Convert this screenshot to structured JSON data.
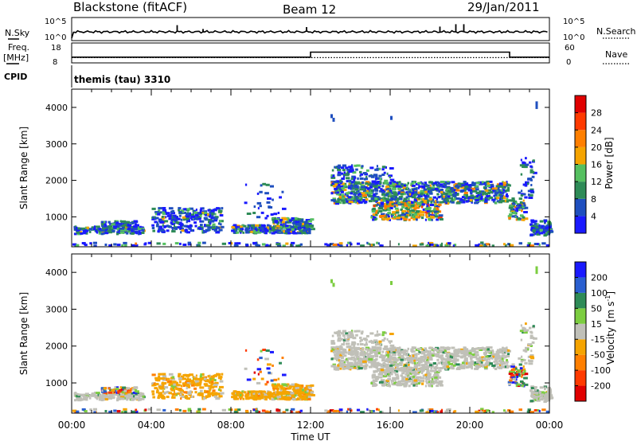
{
  "header": {
    "station": "Blackstone (fitACF)",
    "beam": "Beam 12",
    "date": "29/Jan/2011"
  },
  "colors": {
    "scatter_power": [
      "#1a1aff",
      "#1f4fbf",
      "#2e8b57",
      "#55c060",
      "#f5a400",
      "#ff7f00",
      "#ff3a00",
      "#e00000"
    ],
    "scatter_velocity": [
      "#1a1aff",
      "#2a5fd0",
      "#2e8b57",
      "#7ccd40",
      "#c0c0b8",
      "#f5a400",
      "#ff7f00",
      "#ff3a00",
      "#e00000"
    ]
  },
  "chart_data": [
    {
      "type": "line",
      "name_label": "N.Sky",
      "right_label": "N.Search",
      "left_ticks": [
        "10^5",
        "10^0"
      ],
      "right_ticks": [
        "10^5",
        "10^0"
      ],
      "x": [
        0,
        2.5,
        4.5,
        5.3,
        6.6,
        9.0,
        11.8,
        12.9,
        18.5,
        19.3,
        19.7,
        24
      ],
      "n_sky_spikes": [
        [
          5.3,
          0.7
        ],
        [
          6.6,
          0.3
        ],
        [
          11.8,
          0.5
        ],
        [
          18.5,
          0.55
        ],
        [
          19.3,
          0.8
        ],
        [
          19.7,
          0.8
        ]
      ]
    },
    {
      "type": "line",
      "name_label": "Freq.",
      "unit_label": "[MHz]",
      "right_label": "Nave",
      "left_ticks": [
        "18",
        "8"
      ],
      "right_ticks": [
        "60",
        "0"
      ],
      "freq_x": [
        0,
        12.0,
        12.0,
        22.0,
        22.0,
        24
      ],
      "freq_y": [
        10.5,
        10.5,
        14.2,
        14.2,
        10.5,
        10.5
      ],
      "nave": 18
    },
    {
      "type": "text",
      "label": "CPID",
      "value": "themis (tau) 3310"
    },
    {
      "type": "scatter",
      "ylabel": "Slant Range [km]",
      "yticks": [
        1000,
        2000,
        3000,
        4000
      ],
      "ylim": [
        180,
        4500
      ],
      "xlim": [
        0,
        24
      ],
      "colorbar": {
        "label": "Power [dB]",
        "ticks": [
          "4",
          "8",
          "12",
          "16",
          "20",
          "24",
          "28"
        ]
      }
    },
    {
      "type": "scatter",
      "ylabel": "Slant Range [km]",
      "yticks": [
        1000,
        2000,
        3000,
        4000
      ],
      "ylim": [
        180,
        4500
      ],
      "xlim": [
        0,
        24
      ],
      "xticks": [
        "00:00",
        "04:00",
        "08:00",
        "12:00",
        "16:00",
        "20:00",
        "00:00"
      ],
      "xlabel": "Time UT",
      "colorbar": {
        "label": "Velocity",
        "unit": "[m s",
        "unit_sup": "-1",
        "unit_end": "]",
        "ticks": [
          "200",
          "100",
          "50",
          "15",
          "-15",
          "-50",
          "-100",
          "-200"
        ]
      }
    }
  ]
}
